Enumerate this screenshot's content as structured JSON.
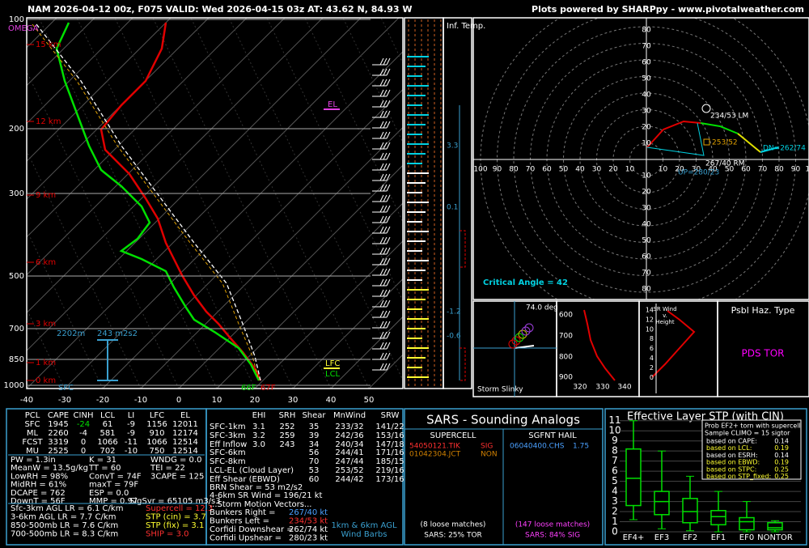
{
  "header": {
    "title": "NAM 2026-04-12 00z, F075  VALID: Wed 2026-04-15 03z  AT: 43.62 N, 84.93 W",
    "credit": "Plots powered by SHARPpy - www.pivotalweather.com"
  },
  "skewt": {
    "omega": "OMEGA",
    "pressures": [
      100,
      200,
      300,
      500,
      700,
      850,
      1000
    ],
    "temps": [
      -40,
      -30,
      -20,
      -10,
      0,
      10,
      20,
      30,
      40,
      50
    ],
    "heights": [
      "15 km",
      "12 km",
      "9 km",
      "6 km",
      "3 km",
      "1 km",
      "0 km"
    ],
    "el": "EL",
    "lfc": "LFC",
    "lcl": "LCL",
    "sfc": "SFC",
    "depth": "2202m",
    "srh": "243 m2s2",
    "dew_f": "66F",
    "temp_f": "67F"
  },
  "inf_temp": {
    "title": "Inf. Temp.",
    "labels": [
      "3.3",
      "0.1",
      "-1.2",
      "-0.6"
    ]
  },
  "hodo": {
    "rings": [
      10,
      20,
      30,
      40,
      50,
      60,
      70,
      80
    ],
    "xrings": [
      10,
      20,
      30,
      40,
      50,
      60,
      70,
      80,
      90,
      100
    ],
    "lm": "234/53 LM",
    "mean": "253/52",
    "dn": "DN=262/74",
    "rm": "267/40 RM",
    "up": "UP=280/23",
    "critical": "Critical Angle = 42"
  },
  "slinky": {
    "angle": "74.0 deg",
    "title": "Storm Slinky"
  },
  "thetae": {
    "pressures": [
      600,
      700,
      800,
      900
    ],
    "thetas": [
      320,
      330,
      340
    ]
  },
  "srwind": {
    "heights": [
      14,
      12,
      10,
      8,
      6,
      4,
      2,
      0
    ],
    "title": [
      "SR Wind",
      "v.",
      "Height"
    ]
  },
  "hazard": {
    "title": "Psbl Haz. Type",
    "type": "PDS TOR"
  },
  "parcels": {
    "headers": [
      "PCL",
      "CAPE",
      "CINH",
      "LCL",
      "LI",
      "LFC",
      "EL"
    ],
    "rows": [
      [
        "SFC",
        "1945",
        "-24",
        "61",
        "-9",
        "1156",
        "12011"
      ],
      [
        "ML",
        "2260",
        "-4",
        "581",
        "-9",
        "910",
        "12174"
      ],
      [
        "FCST",
        "3319",
        "0",
        "1066",
        "-11",
        "1066",
        "12514"
      ],
      [
        "MU",
        "2525",
        "0",
        "702",
        "-10",
        "750",
        "12514"
      ]
    ]
  },
  "indices": {
    "col1": [
      "PW = 1.3in",
      "MeanW = 13.5g/kg",
      "LowRH = 98%",
      "MidRH = 61%",
      "DCAPE = 762",
      "DownT = 56F"
    ],
    "col2": [
      "K = 31",
      "TT = 60",
      "ConvT = 74F",
      "maxT = 79F",
      "ESP = 0.0",
      "MMP = 0.97"
    ],
    "col3": [
      "WNDG = 0.0",
      "TEI = 22",
      "3CAPE = 125"
    ],
    "sigsvr": "SigSvr = 65105 m3/s3"
  },
  "lapse": [
    "Sfc-3km AGL LR = 6.1 C/km",
    "3-6km AGL LR = 7.7 C/km",
    "850-500mb LR = 7.6 C/km",
    "700-500mb LR = 8.3 C/km"
  ],
  "composites": [
    {
      "text": "Supercell = 12.3",
      "color": "#ff3030"
    },
    {
      "text": "STP (cin) = 3.7",
      "color": "#ffff30"
    },
    {
      "text": "STP (fix) = 3.1",
      "color": "#ffff30"
    },
    {
      "text": "SHIP = 3.0",
      "color": "#ff3030"
    }
  ],
  "kinematics": {
    "headers": [
      "EHI",
      "SRH",
      "Shear",
      "MnWind",
      "SRW"
    ],
    "rows": [
      {
        "label": "SFC-1km",
        "cells": [
          "3.1",
          "252",
          "35",
          "233/32",
          "141/22"
        ]
      },
      {
        "label": "SFC-3km",
        "cells": [
          "3.2",
          "259",
          "39",
          "242/36",
          "153/16"
        ]
      },
      {
        "label": "Eff Inflow",
        "cells": [
          "3.0",
          "243",
          "34",
          "240/34",
          "147/18"
        ]
      },
      {
        "label": "SFC-6km",
        "cells": [
          "56",
          "244/41",
          "171/16"
        ]
      },
      {
        "label": "SFC-8km",
        "cells": [
          "70",
          "247/44",
          "185/15"
        ]
      },
      {
        "label": "LCL-EL (Cloud Layer)",
        "cells": [
          "53",
          "253/52",
          "219/16"
        ]
      },
      {
        "label": "Eff Shear (EBWD)",
        "cells": [
          "60",
          "244/42",
          "173/16"
        ]
      }
    ]
  },
  "motions": {
    "brn": "BRN Shear = 53 m2/s2",
    "srw46": "4-6km SR Wind = 196/21 kt",
    "heading": "...Storm Motion Vectors...",
    "rows": [
      {
        "label": "Bunkers Right =",
        "value": "267/40 kt",
        "color": "#4aa0ff"
      },
      {
        "label": "Bunkers Left =",
        "value": "234/53 kt",
        "color": "#ff3030"
      },
      {
        "label": "Corfidi Downshear =",
        "value": "262/74 kt",
        "color": "#ffffff"
      },
      {
        "label": "Corfidi Upshear =",
        "value": "280/23 kt",
        "color": "#ffffff"
      }
    ],
    "barbs_note": [
      "1km & 6km AGL",
      "Wind Barbs"
    ]
  },
  "sars": {
    "title": "SARS - Sounding Analogs",
    "supercell": "SUPERCELL",
    "hail": "SGFNT HAIL",
    "supercell_matches": [
      {
        "id": "54050121.TIK",
        "cat": "SIG",
        "color": "#ff3030"
      },
      {
        "id": "01042304.JCT",
        "cat": "NON",
        "color": "#d08000"
      }
    ],
    "hail_matches": [
      {
        "id": "06040400.CHS",
        "size": "1.75",
        "color": "#4aa0ff"
      }
    ],
    "supercell_loose": "(8 loose matches)",
    "hail_loose": "(147 loose matches)",
    "supercell_prob": "SARS: 25% TOR",
    "hail_prob": "SARS: 84% SIG"
  },
  "stp": {
    "title": "Effective Layer STP (with CIN)",
    "yticks": [
      0,
      1,
      2,
      3,
      4,
      5,
      6,
      7,
      8,
      9,
      10,
      11
    ],
    "ylim": [
      0,
      11.3
    ],
    "categories": [
      "EF4+",
      "EF3",
      "EF2",
      "EF1",
      "EF0",
      "NONTOR"
    ],
    "boxes": [
      [
        1.2,
        2.6,
        5.3,
        8.2,
        11
      ],
      [
        0.3,
        1.7,
        3,
        4,
        8
      ],
      [
        0.1,
        0.9,
        2,
        3.3,
        5.5
      ],
      [
        0,
        0.7,
        1.5,
        2.1,
        4
      ],
      [
        0,
        0.2,
        1,
        1.4,
        3
      ],
      [
        0,
        0.2,
        0.4,
        0.9,
        1.1
      ]
    ],
    "legend": [
      "Prob EF2+ torn with supercell",
      "Sample CLIMO = 15 sigtor"
    ],
    "probs": [
      {
        "label": "based on CAPE:",
        "value": "0.14",
        "color": "#ffffff"
      },
      {
        "label": "based on LCL:",
        "value": "0.19",
        "color": "#ffff30"
      },
      {
        "label": "based on ESRH:",
        "value": "0.14",
        "color": "#ffffff"
      },
      {
        "label": "based on EBWD:",
        "value": "0.19",
        "color": "#ffff30"
      },
      {
        "label": "based on STPC:",
        "value": "0.25",
        "color": "#ffff30"
      },
      {
        "label": "based on STP_fixed:",
        "value": "0.25",
        "color": "#ffff30"
      }
    ]
  }
}
